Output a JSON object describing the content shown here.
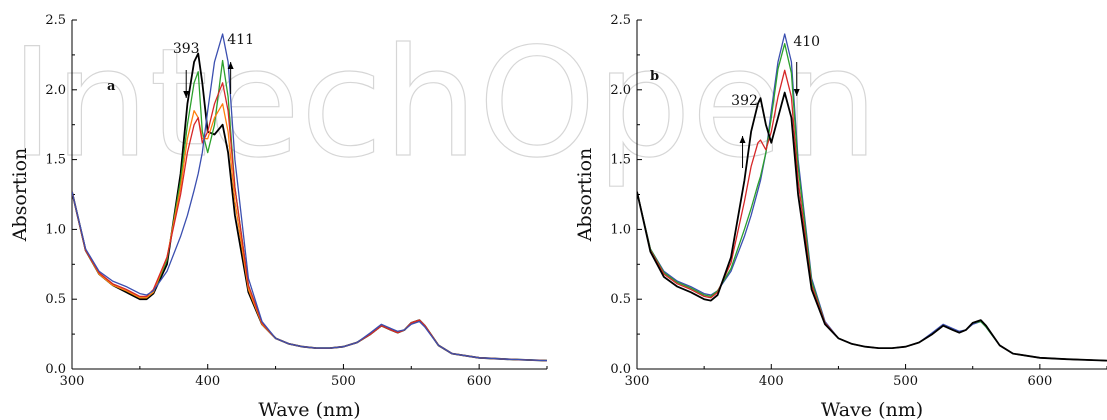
{
  "watermark": "IntechOpen",
  "chart_data": [
    {
      "type": "line",
      "panel_label": "a",
      "xlabel": "Wave (nm)",
      "ylabel": "Absortion",
      "xlim": [
        300,
        650
      ],
      "ylim": [
        0,
        2.5
      ],
      "xticks": [
        "300",
        "400",
        "500",
        "600"
      ],
      "yticks": [
        "0.0",
        "0.5",
        "1.0",
        "1.5",
        "2.0",
        "2.5"
      ],
      "annotations": [
        {
          "text": "393",
          "x": 393,
          "arrow": "down"
        },
        {
          "text": "411",
          "x": 411,
          "arrow": "up"
        }
      ],
      "x": [
        300,
        310,
        320,
        330,
        340,
        350,
        355,
        360,
        370,
        380,
        385,
        390,
        393,
        396,
        400,
        405,
        411,
        415,
        420,
        430,
        440,
        450,
        460,
        470,
        480,
        490,
        500,
        510,
        520,
        528,
        535,
        540,
        545,
        550,
        556,
        560,
        570,
        580,
        600,
        620,
        650
      ],
      "series": [
        {
          "color": "#000000",
          "values": [
            1.27,
            0.85,
            0.68,
            0.6,
            0.55,
            0.5,
            0.5,
            0.54,
            0.75,
            1.4,
            1.9,
            2.2,
            2.26,
            2.05,
            1.7,
            1.68,
            1.75,
            1.55,
            1.1,
            0.55,
            0.32,
            0.22,
            0.18,
            0.16,
            0.15,
            0.15,
            0.16,
            0.19,
            0.25,
            0.31,
            0.28,
            0.26,
            0.28,
            0.33,
            0.35,
            0.31,
            0.17,
            0.11,
            0.08,
            0.07,
            0.06
          ]
        },
        {
          "color": "#2ca02c",
          "values": [
            1.27,
            0.85,
            0.68,
            0.6,
            0.56,
            0.51,
            0.51,
            0.55,
            0.78,
            1.35,
            1.75,
            2.05,
            2.13,
            1.7,
            1.55,
            1.75,
            2.21,
            1.95,
            1.3,
            0.6,
            0.33,
            0.22,
            0.18,
            0.16,
            0.15,
            0.15,
            0.16,
            0.19,
            0.25,
            0.31,
            0.28,
            0.26,
            0.28,
            0.33,
            0.35,
            0.31,
            0.17,
            0.11,
            0.08,
            0.07,
            0.06
          ]
        },
        {
          "color": "#ff7f0e",
          "values": [
            1.27,
            0.85,
            0.68,
            0.6,
            0.56,
            0.51,
            0.51,
            0.55,
            0.8,
            1.3,
            1.65,
            1.85,
            1.8,
            1.65,
            1.65,
            1.8,
            1.9,
            1.7,
            1.2,
            0.57,
            0.32,
            0.22,
            0.18,
            0.16,
            0.15,
            0.15,
            0.16,
            0.19,
            0.25,
            0.31,
            0.28,
            0.26,
            0.28,
            0.33,
            0.35,
            0.31,
            0.17,
            0.11,
            0.08,
            0.07,
            0.06
          ]
        },
        {
          "color": "#d62728",
          "values": [
            1.27,
            0.85,
            0.69,
            0.61,
            0.57,
            0.52,
            0.52,
            0.57,
            0.8,
            1.25,
            1.55,
            1.75,
            1.8,
            1.62,
            1.7,
            1.9,
            2.05,
            1.85,
            1.3,
            0.6,
            0.33,
            0.22,
            0.18,
            0.16,
            0.15,
            0.15,
            0.16,
            0.19,
            0.25,
            0.31,
            0.28,
            0.26,
            0.28,
            0.33,
            0.35,
            0.31,
            0.17,
            0.11,
            0.08,
            0.07,
            0.06
          ]
        },
        {
          "color": "#3b4fb0",
          "values": [
            1.27,
            0.86,
            0.7,
            0.63,
            0.59,
            0.54,
            0.53,
            0.56,
            0.7,
            0.95,
            1.1,
            1.28,
            1.4,
            1.55,
            1.85,
            2.2,
            2.4,
            2.2,
            1.5,
            0.65,
            0.34,
            0.22,
            0.18,
            0.16,
            0.15,
            0.15,
            0.16,
            0.19,
            0.26,
            0.32,
            0.29,
            0.27,
            0.28,
            0.32,
            0.34,
            0.3,
            0.17,
            0.11,
            0.08,
            0.07,
            0.06
          ]
        }
      ]
    },
    {
      "type": "line",
      "panel_label": "b",
      "xlabel": "Wave (nm)",
      "ylabel": "Absortion",
      "xlim": [
        300,
        650
      ],
      "ylim": [
        0,
        2.5
      ],
      "xticks": [
        "300",
        "400",
        "500",
        "600"
      ],
      "yticks": [
        "0.0",
        "0.5",
        "1.0",
        "1.5",
        "2.0",
        "2.5"
      ],
      "annotations": [
        {
          "text": "392",
          "x": 392,
          "arrow": "up"
        },
        {
          "text": "410",
          "x": 410,
          "arrow": "down"
        }
      ],
      "x": [
        300,
        310,
        320,
        330,
        340,
        350,
        355,
        360,
        370,
        380,
        385,
        390,
        392,
        396,
        400,
        405,
        410,
        415,
        420,
        430,
        440,
        450,
        460,
        470,
        480,
        490,
        500,
        510,
        520,
        528,
        535,
        540,
        545,
        550,
        556,
        560,
        570,
        580,
        600,
        620,
        650
      ],
      "series": [
        {
          "color": "#3b4fb0",
          "values": [
            1.27,
            0.86,
            0.7,
            0.63,
            0.59,
            0.54,
            0.53,
            0.56,
            0.7,
            0.95,
            1.1,
            1.28,
            1.35,
            1.55,
            1.85,
            2.2,
            2.4,
            2.2,
            1.5,
            0.65,
            0.34,
            0.22,
            0.18,
            0.16,
            0.15,
            0.15,
            0.16,
            0.19,
            0.26,
            0.32,
            0.29,
            0.27,
            0.28,
            0.32,
            0.34,
            0.3,
            0.17,
            0.11,
            0.08,
            0.07,
            0.06
          ]
        },
        {
          "color": "#2ca02c",
          "values": [
            1.27,
            0.86,
            0.69,
            0.62,
            0.58,
            0.53,
            0.52,
            0.56,
            0.72,
            1.0,
            1.15,
            1.32,
            1.38,
            1.55,
            1.8,
            2.15,
            2.33,
            2.12,
            1.45,
            0.63,
            0.33,
            0.22,
            0.18,
            0.16,
            0.15,
            0.15,
            0.16,
            0.19,
            0.25,
            0.31,
            0.28,
            0.26,
            0.28,
            0.33,
            0.34,
            0.3,
            0.17,
            0.11,
            0.08,
            0.07,
            0.06
          ]
        },
        {
          "color": "#d62728",
          "values": [
            1.27,
            0.85,
            0.68,
            0.61,
            0.57,
            0.52,
            0.51,
            0.55,
            0.76,
            1.2,
            1.45,
            1.62,
            1.64,
            1.57,
            1.7,
            1.95,
            2.14,
            1.95,
            1.35,
            0.6,
            0.33,
            0.22,
            0.18,
            0.16,
            0.15,
            0.15,
            0.16,
            0.19,
            0.25,
            0.31,
            0.28,
            0.26,
            0.28,
            0.33,
            0.35,
            0.31,
            0.17,
            0.11,
            0.08,
            0.07,
            0.06
          ]
        },
        {
          "color": "#000000",
          "values": [
            1.27,
            0.84,
            0.66,
            0.59,
            0.55,
            0.5,
            0.49,
            0.53,
            0.8,
            1.35,
            1.7,
            1.9,
            1.94,
            1.75,
            1.62,
            1.8,
            1.98,
            1.8,
            1.25,
            0.57,
            0.32,
            0.22,
            0.18,
            0.16,
            0.15,
            0.15,
            0.16,
            0.19,
            0.25,
            0.31,
            0.28,
            0.26,
            0.28,
            0.33,
            0.35,
            0.31,
            0.17,
            0.11,
            0.08,
            0.07,
            0.06
          ]
        }
      ]
    }
  ]
}
